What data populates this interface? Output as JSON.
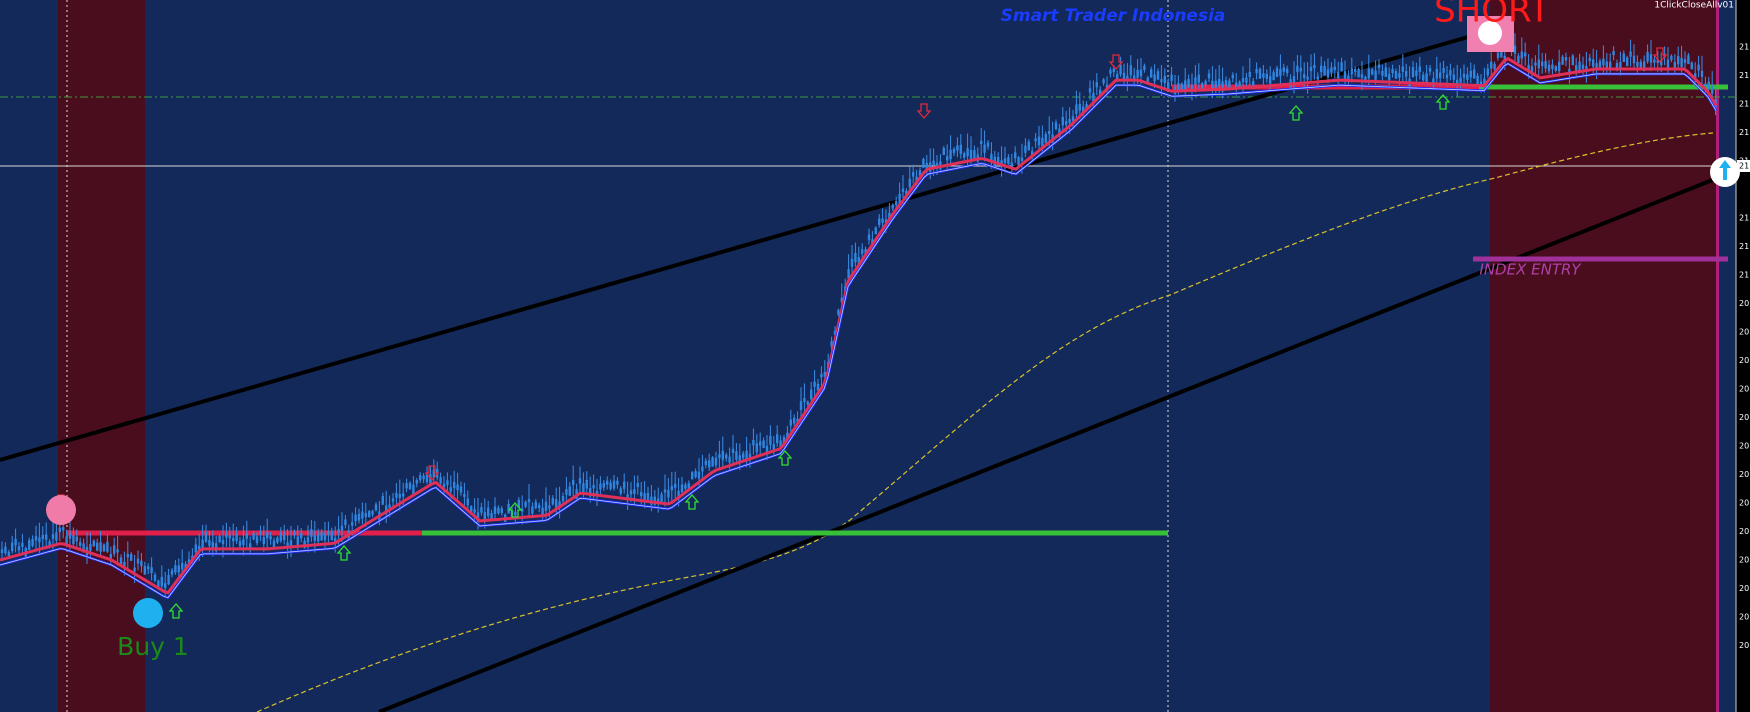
{
  "header": {
    "title": "Smart Trader Indonesia",
    "expert": "1ClickCloseAllv01"
  },
  "signals": {
    "short": "SHORT",
    "buy": "Buy 1",
    "entry": "INDEX ENTRY"
  },
  "price_axis": {
    "labels": [
      "21",
      "21",
      "21",
      "21",
      "21",
      "21",
      "21",
      "21",
      "21",
      "20",
      "20",
      "20",
      "20",
      "20",
      "20",
      "20",
      "20",
      "20",
      "20",
      "20",
      "20",
      "20"
    ]
  }
}
